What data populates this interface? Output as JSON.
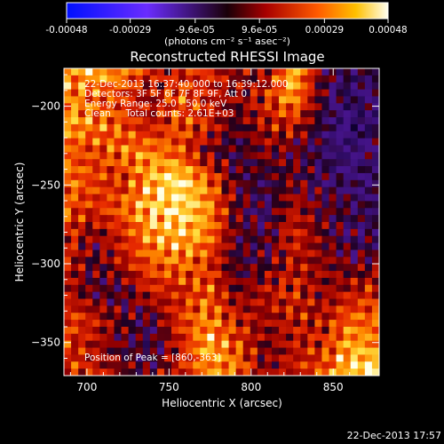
{
  "chart_data": {
    "type": "heatmap",
    "title": "Reconstructed RHESSI Image",
    "xlabel": "Heliocentric X (arcsec)",
    "ylabel": "Heliocentric Y (arcsec)",
    "xlim": [
      686,
      878
    ],
    "ylim": [
      -371,
      -176
    ],
    "x_ticks": [
      700,
      750,
      800,
      850
    ],
    "y_ticks": [
      -350,
      -300,
      -250,
      -200
    ],
    "colorbar": {
      "unit_label": "(photons cm⁻² s⁻¹ asec⁻²)",
      "min": -0.00048,
      "max": 0.00048,
      "tick_labels": [
        "-0.00048",
        "-0.00029",
        "-9.6e-05",
        "9.6e-05",
        "0.00029",
        "0.00048"
      ]
    },
    "annotations": [
      "22-Dec-2013 16:37:40.000 to 16:39:12.000",
      "Detectors: 3F 5F 6F 7F 8F 9F, Att 0",
      "Energy Range: 25.0 - 50.0 keV",
      "Clean     Total counts: 2.61E+03"
    ],
    "peak_label": "Position of Peak = [860,-363]",
    "peak": [
      860,
      -363
    ],
    "intensity_map": {
      "note_grid": [
        12,
        12
      ],
      "values": [
        [
          0.75,
          0.9,
          0.82,
          0.6,
          0.55,
          0.65,
          0.5,
          0.45,
          0.92,
          0.4,
          0.3,
          0.35
        ],
        [
          0.8,
          0.7,
          0.65,
          0.5,
          0.72,
          0.58,
          0.48,
          0.6,
          0.85,
          0.4,
          0.2,
          0.3
        ],
        [
          0.85,
          0.78,
          0.7,
          0.55,
          0.68,
          0.62,
          0.4,
          0.55,
          0.6,
          0.35,
          0.15,
          0.25
        ],
        [
          0.72,
          0.65,
          0.75,
          0.8,
          0.7,
          0.45,
          0.35,
          0.48,
          0.4,
          0.3,
          0.2,
          0.35
        ],
        [
          0.78,
          0.68,
          0.6,
          0.85,
          0.97,
          0.75,
          0.4,
          0.35,
          0.45,
          0.32,
          0.28,
          0.3
        ],
        [
          0.7,
          0.62,
          0.72,
          0.88,
          0.95,
          0.82,
          0.45,
          0.3,
          0.55,
          0.4,
          0.35,
          0.3
        ],
        [
          0.65,
          0.45,
          0.6,
          0.82,
          0.88,
          0.8,
          0.4,
          0.35,
          0.62,
          0.45,
          0.3,
          0.35
        ],
        [
          0.62,
          0.4,
          0.55,
          0.7,
          0.75,
          0.65,
          0.38,
          0.4,
          0.55,
          0.5,
          0.42,
          0.4
        ],
        [
          0.55,
          0.4,
          0.35,
          0.6,
          0.58,
          0.72,
          0.45,
          0.55,
          0.62,
          0.48,
          0.55,
          0.65
        ],
        [
          0.7,
          0.6,
          0.45,
          0.35,
          0.65,
          0.78,
          0.6,
          0.5,
          0.58,
          0.55,
          0.75,
          0.7
        ],
        [
          0.62,
          0.55,
          0.4,
          0.3,
          0.55,
          0.88,
          0.7,
          0.45,
          0.55,
          0.62,
          0.85,
          0.8
        ],
        [
          0.7,
          0.6,
          0.5,
          0.4,
          0.6,
          0.75,
          0.8,
          0.45,
          0.6,
          0.7,
          0.95,
          1.0
        ]
      ]
    }
  },
  "footer": {
    "date": "22-Dec-2013 17:57"
  }
}
